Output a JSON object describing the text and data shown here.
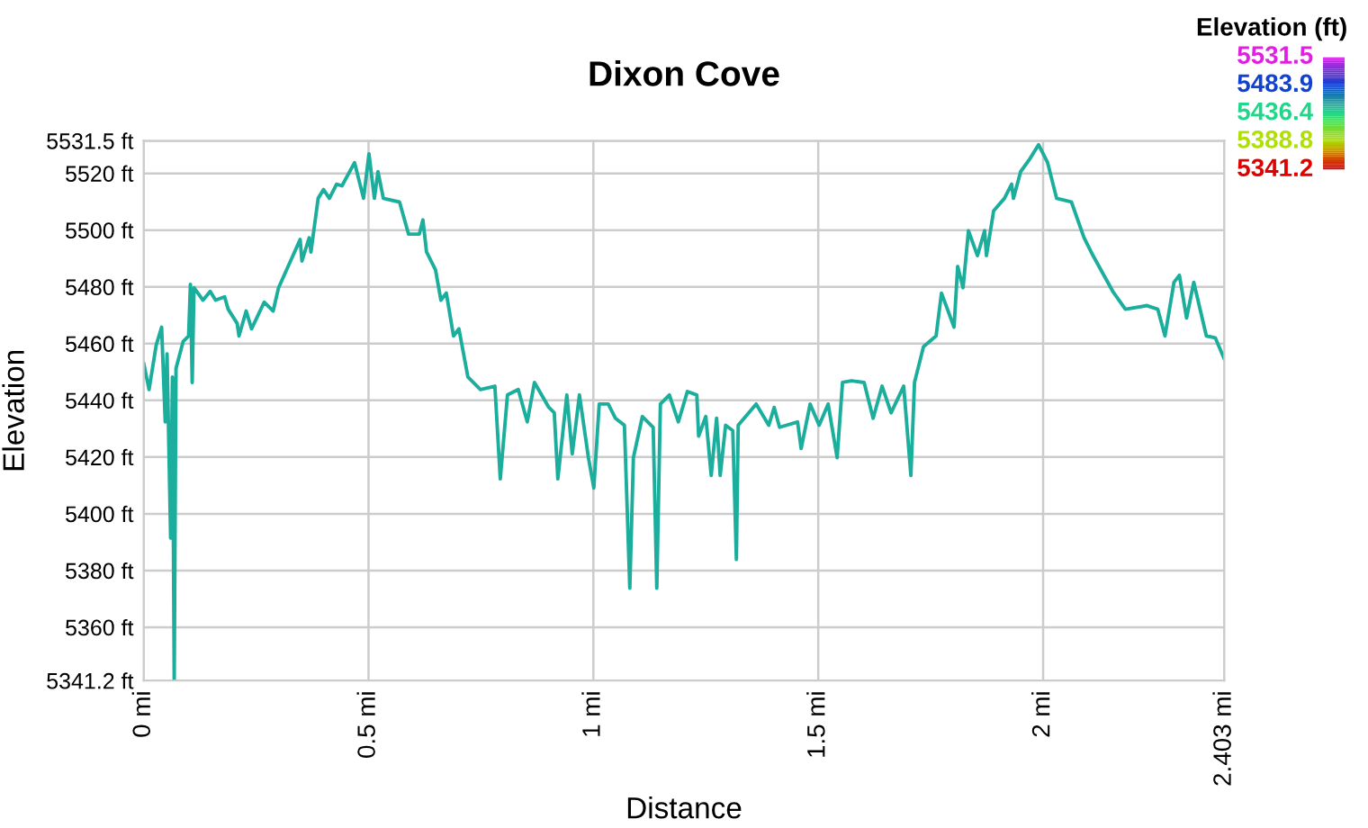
{
  "chart_data": {
    "type": "line",
    "title": "Dixon Cove",
    "xlabel": "Distance",
    "ylabel": "Elevation",
    "clabel": "Elevation (ft)",
    "clim": [
      5341.2,
      5531.5
    ],
    "cticks": [
      5531.5,
      5483.9,
      5436.4,
      5388.8,
      5341.2
    ],
    "xlim": [
      0,
      2.403
    ],
    "xticks": [
      {
        "value": 0,
        "label": "0 mi"
      },
      {
        "value": 0.5,
        "label": "0.5 mi"
      },
      {
        "value": 1,
        "label": "1 mi"
      },
      {
        "value": 1.5,
        "label": "1.5 mi"
      },
      {
        "value": 2,
        "label": "2 mi"
      },
      {
        "value": 2.403,
        "label": "2.403 mi"
      }
    ],
    "ylim": [
      5341.2,
      5531.5
    ],
    "yticks": [
      {
        "value": 5341.2,
        "label": "5341.2 ft"
      },
      {
        "value": 5360,
        "label": "5360 ft"
      },
      {
        "value": 5380,
        "label": "5380 ft"
      },
      {
        "value": 5400,
        "label": "5400 ft"
      },
      {
        "value": 5420,
        "label": "5420 ft"
      },
      {
        "value": 5440,
        "label": "5440 ft"
      },
      {
        "value": 5460,
        "label": "5460 ft"
      },
      {
        "value": 5480,
        "label": "5480 ft"
      },
      {
        "value": 5500,
        "label": "5500 ft"
      },
      {
        "value": 5520,
        "label": "5520 ft"
      },
      {
        "value": 5531.5,
        "label": "5531.5 ft"
      }
    ],
    "grid": true,
    "color": "#1cae9c",
    "line_style": "solid",
    "marker": "none",
    "x": [
      0.0,
      0.012,
      0.028,
      0.04,
      0.048,
      0.052,
      0.06,
      0.064,
      0.068,
      0.072,
      0.088,
      0.1,
      0.104,
      0.108,
      0.112,
      0.132,
      0.148,
      0.16,
      0.18,
      0.188,
      0.208,
      0.212,
      0.228,
      0.24,
      0.268,
      0.288,
      0.3,
      0.332,
      0.348,
      0.352,
      0.368,
      0.372,
      0.388,
      0.4,
      0.413,
      0.429,
      0.441,
      0.469,
      0.489,
      0.501,
      0.513,
      0.521,
      0.533,
      0.569,
      0.589,
      0.613,
      0.621,
      0.629,
      0.649,
      0.661,
      0.673,
      0.689,
      0.701,
      0.721,
      0.749,
      0.781,
      0.793,
      0.809,
      0.833,
      0.853,
      0.869,
      0.901,
      0.913,
      0.921,
      0.941,
      0.953,
      0.969,
      0.989,
      1.001,
      1.013,
      1.033,
      1.049,
      1.069,
      1.081,
      1.089,
      1.109,
      1.133,
      1.141,
      1.149,
      1.169,
      1.189,
      1.209,
      1.23,
      1.234,
      1.25,
      1.262,
      1.274,
      1.282,
      1.294,
      1.31,
      1.318,
      1.322,
      1.362,
      1.39,
      1.402,
      1.414,
      1.454,
      1.462,
      1.482,
      1.502,
      1.522,
      1.542,
      1.554,
      1.574,
      1.602,
      1.622,
      1.642,
      1.662,
      1.69,
      1.706,
      1.714,
      1.734,
      1.762,
      1.774,
      1.802,
      1.81,
      1.822,
      1.834,
      1.854,
      1.87,
      1.874,
      1.89,
      1.914,
      1.93,
      1.934,
      1.95,
      1.97,
      1.99,
      2.01,
      2.03,
      2.063,
      2.091,
      2.111,
      2.135,
      2.155,
      2.183,
      2.231,
      2.255,
      2.271,
      2.291,
      2.303,
      2.319,
      2.335,
      2.363,
      2.383,
      2.403
    ],
    "values": [
      5453.2,
      5443.8,
      5459.5,
      5465.8,
      5432.4,
      5456.4,
      5391.5,
      5448.2,
      5341.2,
      5451.3,
      5460.8,
      5462.7,
      5480.9,
      5446.3,
      5479.7,
      5475.3,
      5478.4,
      5475.3,
      5476.5,
      5472.1,
      5467.1,
      5462.7,
      5471.5,
      5465.2,
      5474.6,
      5471.5,
      5479.7,
      5491.0,
      5496.7,
      5489.1,
      5497.3,
      5492.3,
      5511.2,
      5514.3,
      5511.2,
      5516.2,
      5515.6,
      5523.8,
      5511.2,
      5526.9,
      5511.2,
      5520.6,
      5511.2,
      5509.9,
      5498.6,
      5498.6,
      5503.6,
      5492.3,
      5486.0,
      5475.3,
      5477.8,
      5462.7,
      5465.2,
      5448.2,
      5443.8,
      5445.0,
      5412.3,
      5441.9,
      5443.8,
      5432.4,
      5446.3,
      5437.5,
      5435.6,
      5412.3,
      5441.9,
      5421.1,
      5441.9,
      5419.8,
      5409.1,
      5438.7,
      5438.7,
      5433.7,
      5431.2,
      5373.8,
      5419.8,
      5434.3,
      5430.5,
      5373.8,
      5438.7,
      5441.9,
      5432.4,
      5443.1,
      5441.9,
      5427.4,
      5434.3,
      5413.5,
      5433.7,
      5413.5,
      5431.2,
      5429.3,
      5383.9,
      5431.2,
      5438.7,
      5431.2,
      5437.5,
      5430.5,
      5432.4,
      5423.0,
      5438.7,
      5431.2,
      5438.7,
      5419.8,
      5446.3,
      5446.9,
      5446.3,
      5433.7,
      5445.0,
      5435.6,
      5445.0,
      5413.5,
      5446.3,
      5458.9,
      5462.7,
      5477.8,
      5465.8,
      5487.2,
      5479.7,
      5499.8,
      5491.0,
      5499.8,
      5491.0,
      5506.8,
      5511.2,
      5516.2,
      5511.2,
      5520.6,
      5525.0,
      5530.1,
      5523.8,
      5511.2,
      5509.9,
      5497.3,
      5491.0,
      5484.1,
      5478.4,
      5472.1,
      5473.4,
      5472.1,
      5462.7,
      5481.6,
      5484.1,
      5469.0,
      5481.6,
      5462.7,
      5462.0,
      5454.5
    ]
  }
}
